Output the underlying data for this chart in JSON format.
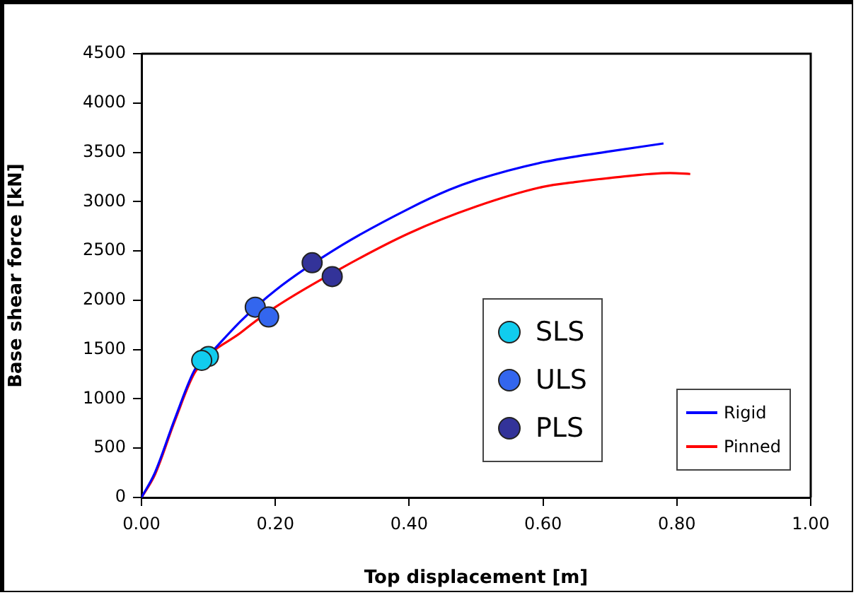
{
  "chart_data": {
    "type": "line",
    "xlabel": "Top displacement [m]",
    "ylabel": "Base shear force [kN]",
    "xlim": [
      0,
      1
    ],
    "xticks": [
      {
        "value": 0,
        "label": "0.00"
      },
      {
        "value": 0.2,
        "label": "0.20"
      },
      {
        "value": 0.4,
        "label": "0.40"
      },
      {
        "value": 0.6,
        "label": "0.60"
      },
      {
        "value": 0.8,
        "label": "0.80"
      },
      {
        "value": 1,
        "label": "1.00"
      }
    ],
    "ylim": [
      0,
      4500
    ],
    "yticks": [
      0,
      500,
      1000,
      1500,
      2000,
      2500,
      3000,
      3500,
      4000,
      4500
    ],
    "grid": false,
    "legend": "bottom right",
    "marker": "none",
    "line_style": "solid",
    "series": [
      {
        "name": "Rigid",
        "type": "line",
        "color": "#0000ff",
        "x": [
          0,
          0.02,
          0.05,
          0.08,
          0.1,
          0.15,
          0.2,
          0.3,
          0.4,
          0.46,
          0.5,
          0.6,
          0.7,
          0.78
        ],
        "values": [
          0,
          250,
          800,
          1300,
          1440,
          1800,
          2100,
          2560,
          2930,
          3120,
          3220,
          3400,
          3510,
          3590
        ]
      },
      {
        "name": "Pinned",
        "type": "line",
        "color": "#ff0000",
        "x": [
          0,
          0.02,
          0.05,
          0.08,
          0.15,
          0.2,
          0.3,
          0.4,
          0.5,
          0.6,
          0.65,
          0.7,
          0.79,
          0.82
        ],
        "values": [
          0,
          230,
          780,
          1270,
          1680,
          1930,
          2330,
          2680,
          2950,
          3150,
          3200,
          3240,
          3290,
          3280
        ]
      },
      {
        "name": "SLS",
        "type": "scatter",
        "marker": "circle",
        "color": "#11ccee",
        "x": [
          0.1,
          0.09
        ],
        "values": [
          1430,
          1390
        ]
      },
      {
        "name": "ULS",
        "type": "scatter",
        "marker": "circle",
        "color": "#3366ee",
        "x": [
          0.17,
          0.19
        ],
        "values": [
          1930,
          1830
        ]
      },
      {
        "name": "PLS",
        "type": "scatter",
        "marker": "circle",
        "color": "#333399",
        "x": [
          0.255,
          0.285
        ],
        "values": [
          2380,
          2240
        ]
      }
    ]
  }
}
